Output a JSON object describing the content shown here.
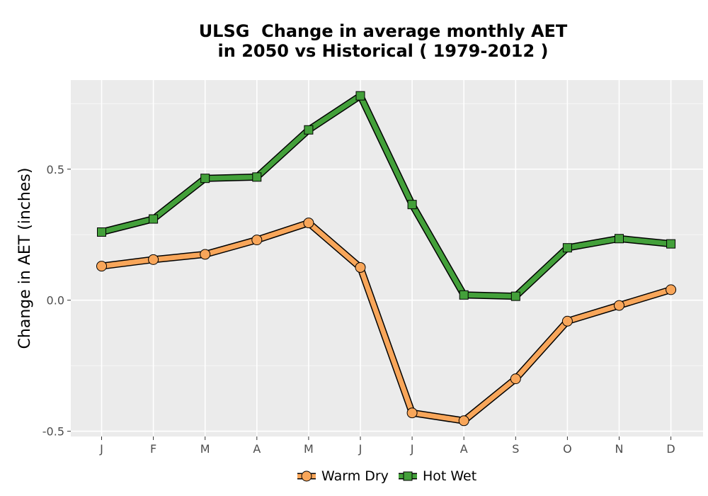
{
  "chart_data": {
    "type": "line",
    "title_lines": [
      "ULSG  Change in average monthly AET",
      "in 2050 vs Historical ( 1979-2012 )"
    ],
    "xlabel": "",
    "ylabel": "Change in AET (inches)",
    "categories": [
      "J",
      "F",
      "M",
      "A",
      "M",
      "J",
      "J",
      "A",
      "S",
      "O",
      "N",
      "D"
    ],
    "ylim": [
      -0.52,
      0.84
    ],
    "yticks": [
      -0.5,
      0.0,
      0.5
    ],
    "ytick_labels": [
      "-0.5",
      "0.0",
      "0.5"
    ],
    "grid": true,
    "legend_position": "bottom",
    "series": [
      {
        "name": "Warm Dry",
        "marker": "circle",
        "color": "#F8A65A",
        "values": [
          0.13,
          0.155,
          0.175,
          0.23,
          0.295,
          0.125,
          -0.43,
          -0.46,
          -0.3,
          -0.08,
          -0.02,
          0.04
        ]
      },
      {
        "name": "Hot Wet",
        "marker": "square",
        "color": "#43A03A",
        "values": [
          0.26,
          0.31,
          0.465,
          0.47,
          0.65,
          0.78,
          0.365,
          0.02,
          0.015,
          0.2,
          0.235,
          0.215
        ]
      }
    ]
  }
}
